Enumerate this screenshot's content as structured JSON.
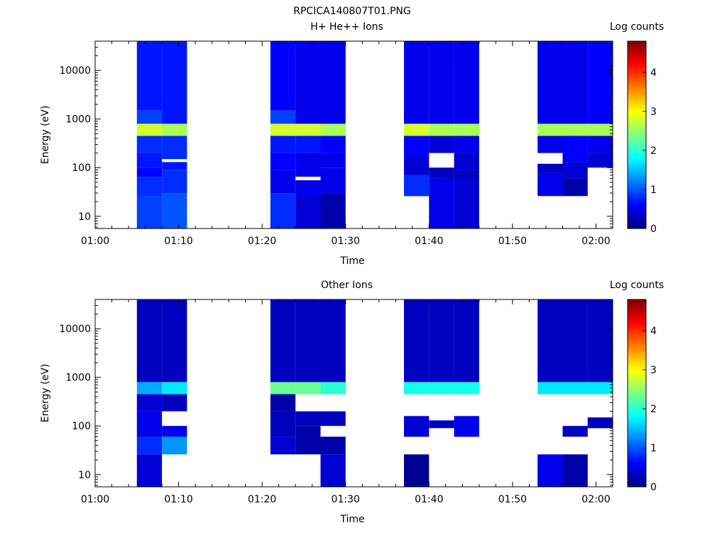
{
  "figure_title": "RPCICA140807T01.PNG",
  "chart_data": [
    {
      "type": "heatmap",
      "title": "H+ He++ Ions",
      "xlabel": "Time",
      "ylabel": "Energy (eV)",
      "x_range": [
        "01:00",
        "02:02"
      ],
      "y_range": [
        5.6,
        40000
      ],
      "y_scale": "log",
      "x_ticks": [
        "01:00",
        "01:10",
        "01:20",
        "01:30",
        "01:40",
        "01:50",
        "02:00"
      ],
      "y_ticks": [
        "10",
        "100",
        "1000",
        "10000"
      ],
      "colorbar": {
        "label": "Log counts",
        "range": [
          0,
          4.8
        ],
        "ticks": [
          "0",
          "1",
          "2",
          "3",
          "4"
        ]
      },
      "columns": [
        {
          "start": "01:05",
          "end": "01:08",
          "bins": [
            [
              5.6,
              26,
              0.9
            ],
            [
              26,
              65,
              0.8
            ],
            [
              65,
              100,
              0.6
            ],
            [
              100,
              200,
              0.7
            ],
            [
              200,
              450,
              0.8
            ],
            [
              450,
              800,
              2.8
            ],
            [
              800,
              1500,
              0.9
            ],
            [
              1500,
              40000,
              0.7
            ]
          ]
        },
        {
          "start": "01:08",
          "end": "01:11",
          "bins": [
            [
              5.6,
              30,
              1.0
            ],
            [
              30,
              90,
              0.8
            ],
            [
              90,
              130,
              0.7
            ],
            [
              130,
              150,
              null
            ],
            [
              150,
              450,
              0.8
            ],
            [
              450,
              800,
              2.6
            ],
            [
              800,
              40000,
              0.7
            ]
          ]
        },
        {
          "start": "01:21",
          "end": "01:24",
          "bins": [
            [
              5.6,
              30,
              0.8
            ],
            [
              30,
              90,
              0.5
            ],
            [
              90,
              200,
              0.6
            ],
            [
              200,
              450,
              0.7
            ],
            [
              450,
              800,
              2.8
            ],
            [
              800,
              1500,
              0.9
            ],
            [
              1500,
              40000,
              0.6
            ]
          ]
        },
        {
          "start": "01:24",
          "end": "01:27",
          "bins": [
            [
              5.6,
              25,
              0.4
            ],
            [
              25,
              55,
              0.5
            ],
            [
              55,
              65,
              null
            ],
            [
              65,
              200,
              0.5
            ],
            [
              200,
              450,
              0.7
            ],
            [
              450,
              800,
              2.8
            ],
            [
              800,
              40000,
              0.5
            ]
          ]
        },
        {
          "start": "01:27",
          "end": "01:30",
          "bins": [
            [
              5.6,
              30,
              0.2
            ],
            [
              30,
              100,
              0.5
            ],
            [
              100,
              200,
              0.5
            ],
            [
              200,
              450,
              0.6
            ],
            [
              450,
              800,
              2.6
            ],
            [
              800,
              40000,
              0.5
            ]
          ]
        },
        {
          "start": "01:37",
          "end": "01:40",
          "bins": [
            [
              26,
              70,
              0.8
            ],
            [
              70,
              170,
              0.4
            ],
            [
              170,
              450,
              0.6
            ],
            [
              450,
              800,
              2.8
            ],
            [
              800,
              40000,
              0.5
            ]
          ]
        },
        {
          "start": "01:40",
          "end": "01:43",
          "bins": [
            [
              5.6,
              60,
              0.5
            ],
            [
              60,
              100,
              0.3
            ],
            [
              100,
              200,
              null
            ],
            [
              200,
              450,
              0.4
            ],
            [
              450,
              800,
              2.6
            ],
            [
              800,
              40000,
              0.5
            ]
          ]
        },
        {
          "start": "01:43",
          "end": "01:46",
          "bins": [
            [
              5.6,
              60,
              0.4
            ],
            [
              60,
              90,
              0.3
            ],
            [
              90,
              200,
              0.4
            ],
            [
              200,
              450,
              0.5
            ],
            [
              450,
              800,
              2.6
            ],
            [
              800,
              40000,
              0.5
            ]
          ]
        },
        {
          "start": "01:53",
          "end": "01:56",
          "bins": [
            [
              26,
              80,
              0.5
            ],
            [
              80,
              120,
              0.3
            ],
            [
              120,
              200,
              null
            ],
            [
              200,
              450,
              0.5
            ],
            [
              450,
              800,
              2.6
            ],
            [
              800,
              40000,
              0.5
            ]
          ]
        },
        {
          "start": "01:56",
          "end": "01:59",
          "bins": [
            [
              26,
              60,
              0.2
            ],
            [
              60,
              130,
              0.4
            ],
            [
              130,
              450,
              0.6
            ],
            [
              450,
              800,
              2.6
            ],
            [
              800,
              40000,
              0.5
            ]
          ]
        },
        {
          "start": "01:59",
          "end": "02:02",
          "bins": [
            [
              100,
              200,
              0.4
            ],
            [
              200,
              450,
              0.5
            ],
            [
              450,
              800,
              2.6
            ],
            [
              800,
              40000,
              0.6
            ]
          ]
        }
      ]
    },
    {
      "type": "heatmap",
      "title": "Other Ions",
      "xlabel": "Time",
      "ylabel": "Energy (eV)",
      "x_range": [
        "01:00",
        "02:02"
      ],
      "y_range": [
        5.6,
        40000
      ],
      "y_scale": "log",
      "x_ticks": [
        "01:00",
        "01:10",
        "01:20",
        "01:30",
        "01:40",
        "01:50",
        "02:00"
      ],
      "y_ticks": [
        "10",
        "100",
        "1000",
        "10000"
      ],
      "colorbar": {
        "label": "Log counts",
        "range": [
          0,
          4.8
        ],
        "ticks": [
          "0",
          "1",
          "2",
          "3",
          "4"
        ]
      },
      "columns": [
        {
          "start": "01:05",
          "end": "01:08",
          "bins": [
            [
              5.6,
              26,
              0.4
            ],
            [
              26,
              60,
              0.8
            ],
            [
              60,
              200,
              0.5
            ],
            [
              200,
              450,
              0.4
            ],
            [
              450,
              800,
              1.4
            ],
            [
              800,
              40000,
              0.3
            ]
          ]
        },
        {
          "start": "01:08",
          "end": "01:11",
          "bins": [
            [
              26,
              60,
              1.3
            ],
            [
              60,
              100,
              0.5
            ],
            [
              100,
              200,
              null
            ],
            [
              200,
              450,
              0.3
            ],
            [
              450,
              800,
              1.7
            ],
            [
              800,
              40000,
              0.3
            ]
          ]
        },
        {
          "start": "01:21",
          "end": "01:24",
          "bins": [
            [
              26,
              60,
              0.4
            ],
            [
              60,
              200,
              0.3
            ],
            [
              200,
              450,
              0.2
            ],
            [
              450,
              800,
              2.3
            ],
            [
              800,
              40000,
              0.3
            ]
          ]
        },
        {
          "start": "01:24",
          "end": "01:27",
          "bins": [
            [
              26,
              100,
              0.2
            ],
            [
              100,
              200,
              0.3
            ],
            [
              200,
              450,
              null
            ],
            [
              450,
              800,
              2.3
            ],
            [
              800,
              40000,
              0.3
            ]
          ]
        },
        {
          "start": "01:27",
          "end": "01:30",
          "bins": [
            [
              5.6,
              26,
              0.4
            ],
            [
              26,
              60,
              0.2
            ],
            [
              60,
              100,
              null
            ],
            [
              100,
              200,
              0.3
            ],
            [
              450,
              800,
              2.0
            ],
            [
              800,
              40000,
              0.3
            ]
          ]
        },
        {
          "start": "01:37",
          "end": "01:40",
          "bins": [
            [
              5.6,
              26,
              0.1
            ],
            [
              60,
              160,
              0.4
            ],
            [
              450,
              800,
              1.9
            ],
            [
              800,
              40000,
              0.3
            ]
          ]
        },
        {
          "start": "01:40",
          "end": "01:43",
          "bins": [
            [
              90,
              130,
              0.3
            ],
            [
              450,
              800,
              1.9
            ],
            [
              800,
              40000,
              0.3
            ]
          ]
        },
        {
          "start": "01:43",
          "end": "01:46",
          "bins": [
            [
              60,
              160,
              0.5
            ],
            [
              450,
              800,
              1.9
            ],
            [
              800,
              40000,
              0.3
            ]
          ]
        },
        {
          "start": "01:53",
          "end": "01:56",
          "bins": [
            [
              5.6,
              26,
              0.5
            ],
            [
              450,
              800,
              1.7
            ],
            [
              800,
              40000,
              0.3
            ]
          ]
        },
        {
          "start": "01:56",
          "end": "01:59",
          "bins": [
            [
              5.6,
              26,
              0.2
            ],
            [
              60,
              100,
              0.3
            ],
            [
              450,
              800,
              1.7
            ],
            [
              800,
              40000,
              0.3
            ]
          ]
        },
        {
          "start": "01:59",
          "end": "02:02",
          "bins": [
            [
              90,
              150,
              0.3
            ],
            [
              450,
              800,
              1.7
            ],
            [
              800,
              40000,
              0.3
            ]
          ]
        }
      ]
    }
  ]
}
